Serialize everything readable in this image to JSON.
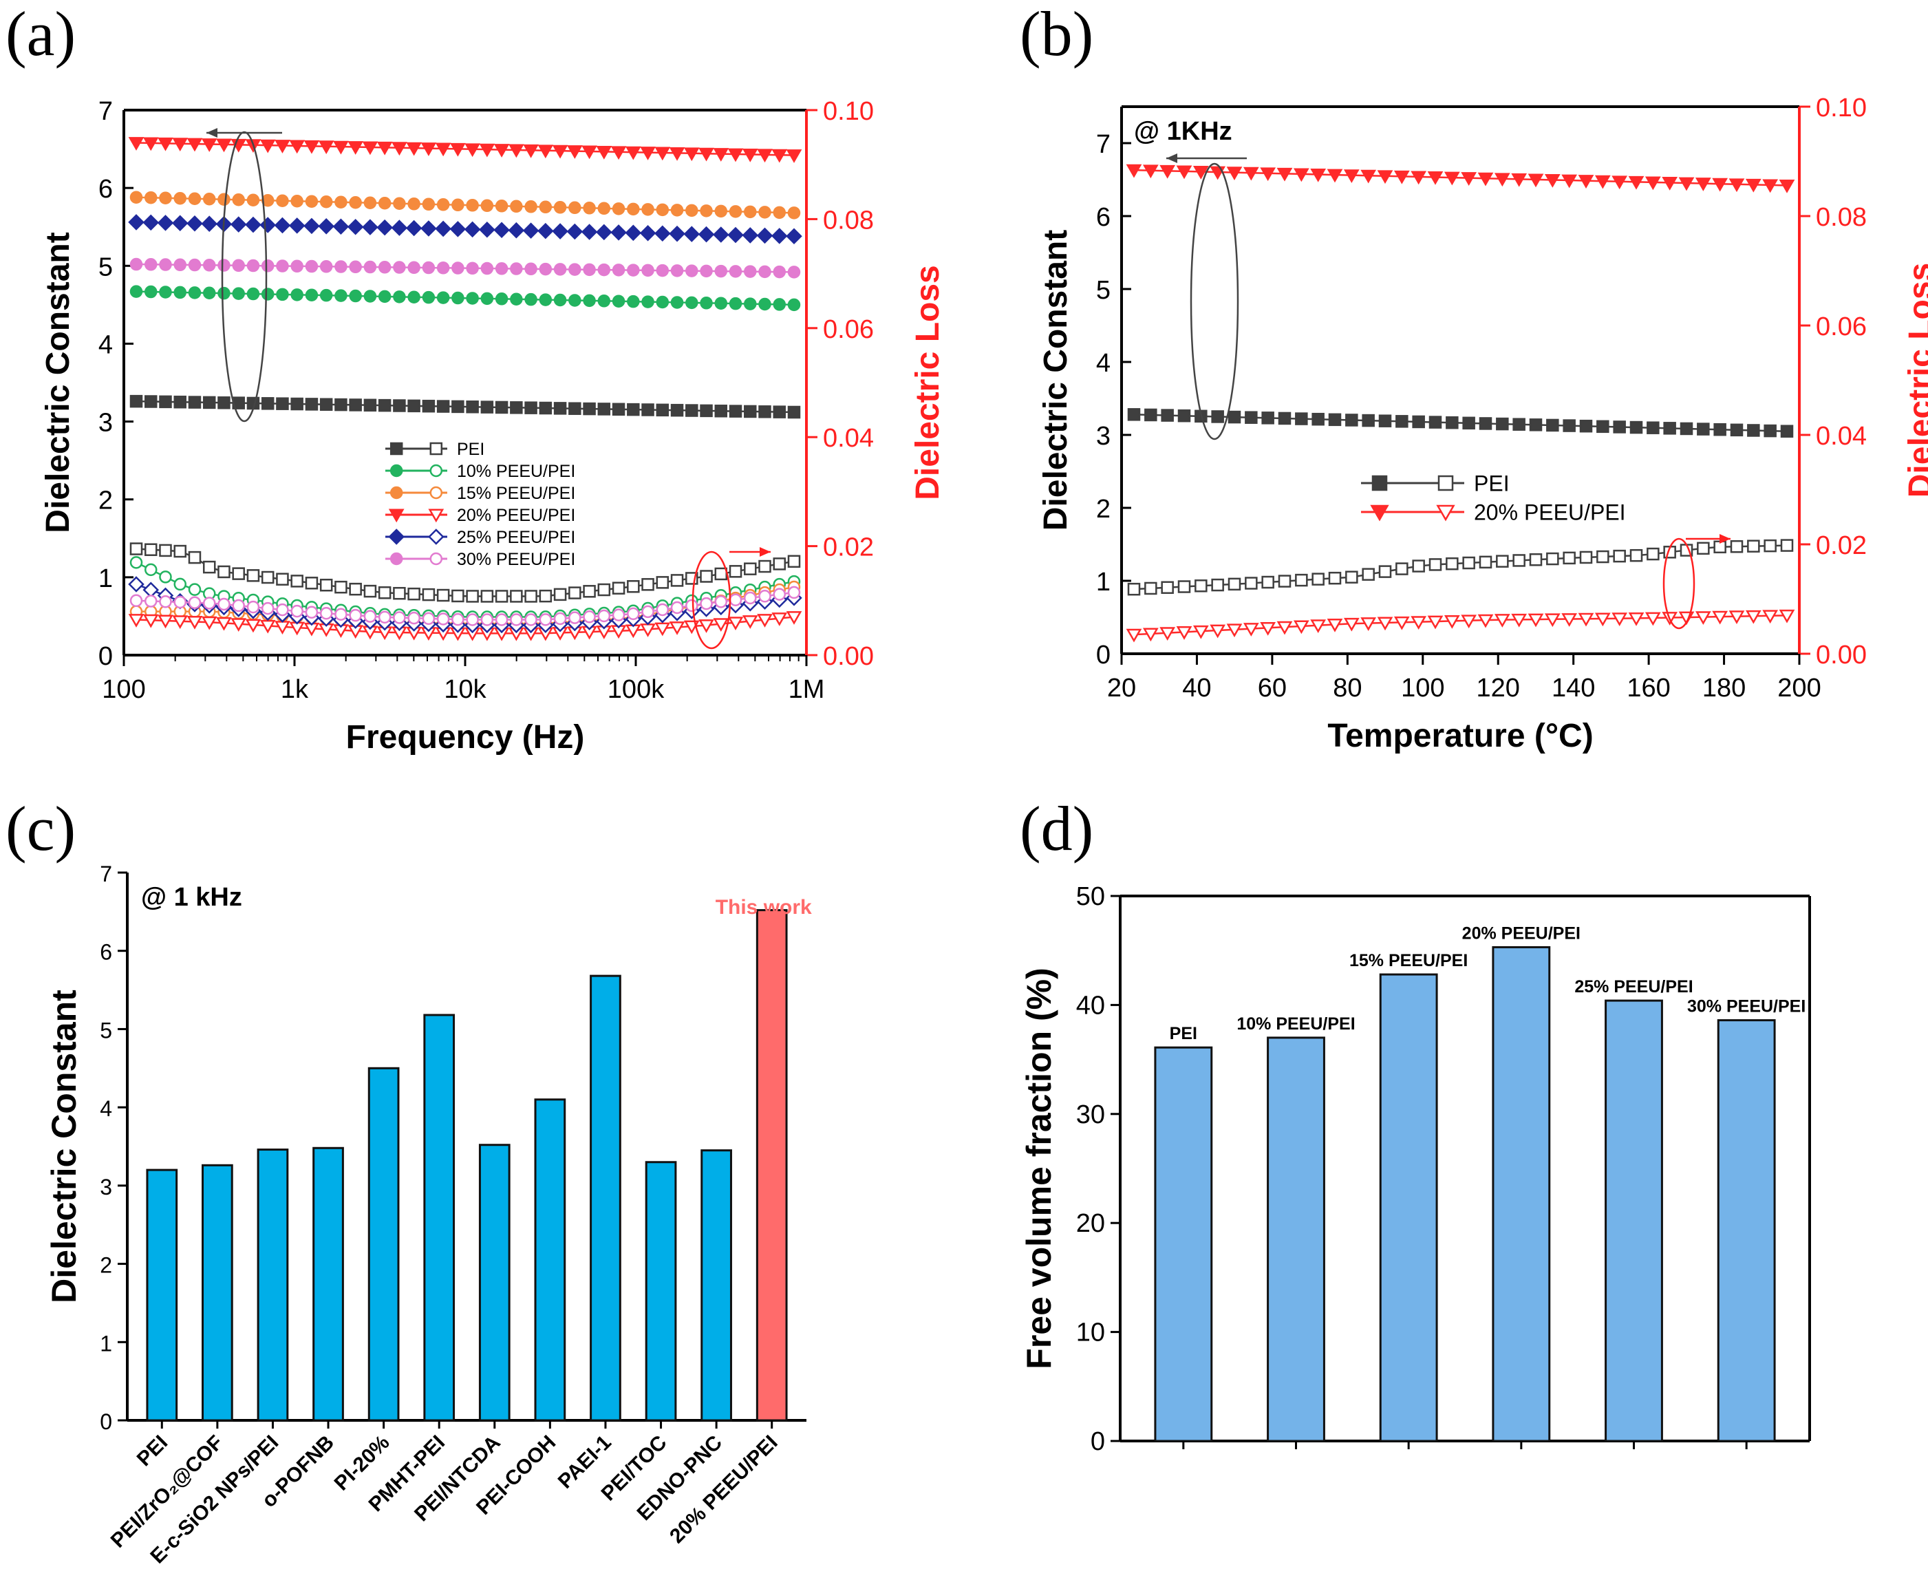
{
  "chart_data": [
    {
      "panel": "(a)",
      "type": "line",
      "xlabel": "Frequency (Hz)",
      "ylabel": "Dielectric Constant",
      "ylabel_right": "Dielectric Loss",
      "xscale": "log",
      "xlim": [
        100,
        1000000
      ],
      "xticks": [
        "100",
        "1k",
        "10k",
        "100k",
        "1M"
      ],
      "ylim": [
        0,
        7
      ],
      "ylim_right": [
        0.0,
        0.1
      ],
      "yticks": [
        "0",
        "1",
        "2",
        "3",
        "4",
        "5",
        "6",
        "7"
      ],
      "yticks_right": [
        "0.00",
        "0.02",
        "0.04",
        "0.06",
        "0.08",
        "0.10"
      ],
      "legend_position": "center",
      "series": [
        {
          "name": "PEI",
          "color": "#3f3f3f",
          "marker": "square",
          "constant": [
            3.26,
            3.12
          ],
          "loss_profile": [
            [
              100,
              0.0195
            ],
            [
              200,
              0.019
            ],
            [
              300,
              0.0155
            ],
            [
              1000,
              0.0135
            ],
            [
              3000,
              0.0115
            ],
            [
              10000,
              0.0108
            ],
            [
              30000,
              0.0108
            ],
            [
              100000,
              0.0125
            ],
            [
              300000,
              0.0145
            ],
            [
              1000000,
              0.0172
            ]
          ]
        },
        {
          "name": "10% PEEU/PEI",
          "color": "#22b35f",
          "marker": "circle",
          "constant": [
            4.67,
            4.5
          ],
          "loss_profile": [
            [
              100,
              0.017
            ],
            [
              200,
              0.0125
            ],
            [
              300,
              0.011
            ],
            [
              1000,
              0.009
            ],
            [
              3000,
              0.0075
            ],
            [
              10000,
              0.007
            ],
            [
              30000,
              0.007
            ],
            [
              100000,
              0.008
            ],
            [
              300000,
              0.0105
            ],
            [
              1000000,
              0.0135
            ]
          ]
        },
        {
          "name": "15% PEEU/PEI",
          "color": "#f58a3c",
          "marker": "circle",
          "constant": [
            5.88,
            5.68
          ],
          "loss_profile": [
            [
              100,
              0.008
            ],
            [
              300,
              0.008
            ],
            [
              1000,
              0.007
            ],
            [
              3000,
              0.006
            ],
            [
              10000,
              0.0058
            ],
            [
              30000,
              0.0058
            ],
            [
              100000,
              0.0068
            ],
            [
              300000,
              0.0095
            ],
            [
              1000000,
              0.0125
            ]
          ]
        },
        {
          "name": "20% PEEU/PEI",
          "color": "#ff2a2a",
          "marker": "triangle-down",
          "constant": [
            6.58,
            6.42
          ],
          "loss_profile": [
            [
              100,
              0.0065
            ],
            [
              300,
              0.006
            ],
            [
              1000,
              0.005
            ],
            [
              3000,
              0.0042
            ],
            [
              10000,
              0.004
            ],
            [
              30000,
              0.004
            ],
            [
              100000,
              0.0045
            ],
            [
              300000,
              0.0055
            ],
            [
              1000000,
              0.007
            ]
          ]
        },
        {
          "name": "25% PEEU/PEI",
          "color": "#1f2a9c",
          "marker": "diamond",
          "constant": [
            5.56,
            5.38
          ],
          "loss_profile": [
            [
              100,
              0.013
            ],
            [
              200,
              0.0095
            ],
            [
              300,
              0.009
            ],
            [
              1000,
              0.007
            ],
            [
              3000,
              0.006
            ],
            [
              10000,
              0.0055
            ],
            [
              30000,
              0.0055
            ],
            [
              100000,
              0.0065
            ],
            [
              300000,
              0.0085
            ],
            [
              1000000,
              0.0105
            ]
          ]
        },
        {
          "name": "30% PEEU/PEI",
          "color": "#e27bd0",
          "marker": "circle",
          "constant": [
            5.02,
            4.92
          ],
          "loss_profile": [
            [
              100,
              0.01
            ],
            [
              300,
              0.0095
            ],
            [
              1000,
              0.008
            ],
            [
              3000,
              0.007
            ],
            [
              10000,
              0.0065
            ],
            [
              30000,
              0.0065
            ],
            [
              100000,
              0.0075
            ],
            [
              300000,
              0.0095
            ],
            [
              1000000,
              0.0115
            ]
          ]
        }
      ]
    },
    {
      "panel": "(b)",
      "type": "line",
      "annotation": "@ 1KHz",
      "xlabel": "Temperature (°C)",
      "ylabel": "Dielectric Constant",
      "ylabel_right": "Dielectric Loss",
      "xlim": [
        20,
        200
      ],
      "xticks": [
        "20",
        "40",
        "60",
        "80",
        "100",
        "120",
        "140",
        "160",
        "180",
        "200"
      ],
      "ylim": [
        0,
        7.5
      ],
      "ylim_right": [
        0.0,
        0.1
      ],
      "yticks": [
        "0",
        "1",
        "2",
        "3",
        "4",
        "5",
        "6",
        "7"
      ],
      "yticks_right": [
        "0.00",
        "0.02",
        "0.04",
        "0.06",
        "0.08",
        "0.10"
      ],
      "legend_position": "center",
      "series": [
        {
          "name": "PEI",
          "color": "#3f3f3f",
          "marker": "square",
          "constant": [
            3.28,
            3.05
          ],
          "loss_profile": [
            [
              20,
              0.0118
            ],
            [
              50,
              0.0128
            ],
            [
              80,
              0.014
            ],
            [
              100,
              0.0162
            ],
            [
              140,
              0.0175
            ],
            [
              160,
              0.018
            ],
            [
              180,
              0.0195
            ],
            [
              200,
              0.0198
            ]
          ]
        },
        {
          "name": "20% PEEU/PEI",
          "color": "#ff2a2a",
          "marker": "triangle-down",
          "constant": [
            6.63,
            6.42
          ],
          "loss_profile": [
            [
              20,
              0.0035
            ],
            [
              50,
              0.0045
            ],
            [
              80,
              0.0055
            ],
            [
              120,
              0.0062
            ],
            [
              160,
              0.0065
            ],
            [
              200,
              0.007
            ]
          ]
        }
      ]
    },
    {
      "panel": "(c)",
      "type": "bar",
      "annotation": "@ 1 kHz",
      "highlight_label": "This work",
      "ylabel": "Dielectric Constant",
      "ylim": [
        0,
        7
      ],
      "yticks": [
        "0",
        "1",
        "2",
        "3",
        "4",
        "5",
        "6",
        "7"
      ],
      "categories": [
        "PEI",
        "PEI/ZrO₂@COF",
        "E-c-SiO2 NPs/PEI",
        "o-POFNB",
        "PI-20%",
        "PMHT-PEI",
        "PEI/NTCDA",
        "PEI-COOH",
        "PAEI-1",
        "PEI/TOC",
        "EDNO-PNC",
        "20% PEEU/PEI"
      ],
      "values": [
        3.2,
        3.26,
        3.46,
        3.48,
        4.5,
        5.18,
        3.52,
        4.1,
        5.68,
        3.3,
        3.45,
        6.52
      ],
      "bar_color": "#00aee8",
      "highlight_color": "#ff6b6b"
    },
    {
      "panel": "(d)",
      "type": "bar",
      "ylabel": "Free volume fraction (%)",
      "ylim": [
        0,
        50
      ],
      "yticks": [
        "0",
        "10",
        "20",
        "30",
        "40",
        "50"
      ],
      "categories": [
        "PEI",
        "10% PEEU/PEI",
        "15% PEEU/PEI",
        "20% PEEU/PEI",
        "25% PEEU/PEI",
        "30% PEEU/PEI"
      ],
      "values": [
        36.1,
        37.0,
        42.8,
        45.3,
        40.4,
        38.6
      ],
      "bar_color": "#74b3e9"
    }
  ]
}
